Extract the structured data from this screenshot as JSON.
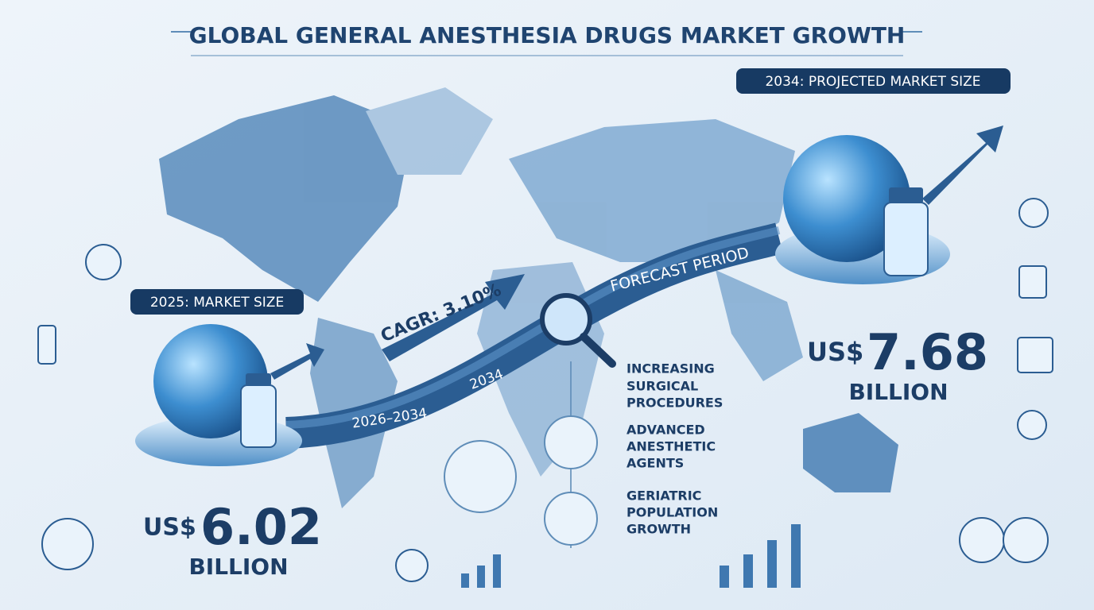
{
  "header": {
    "title": "GLOBAL GENERAL ANESTHESIA DRUGS MARKET GROWTH"
  },
  "start": {
    "label": "2025: MARKET SIZE",
    "currency": "US$",
    "value": 6.02,
    "unit": "BILLION"
  },
  "end": {
    "label": "2034: PROJECTED MARKET SIZE",
    "currency": "US$",
    "value": 7.68,
    "unit": "BILLION"
  },
  "ribbon": {
    "cagr": "CAGR: 3.10%",
    "period_label": "FORECAST PERIOD",
    "period": "2026–2034",
    "end_year": 2034
  },
  "drivers": [
    {
      "lines": [
        "INCREASING",
        "SURGICAL",
        "PROCEDURES"
      ]
    },
    {
      "lines": [
        "ADVANCED",
        "ANESTHETIC",
        "AGENTS"
      ]
    },
    {
      "lines": [
        "GERIATRIC",
        "POPULATION",
        "GROWTH"
      ]
    }
  ]
}
